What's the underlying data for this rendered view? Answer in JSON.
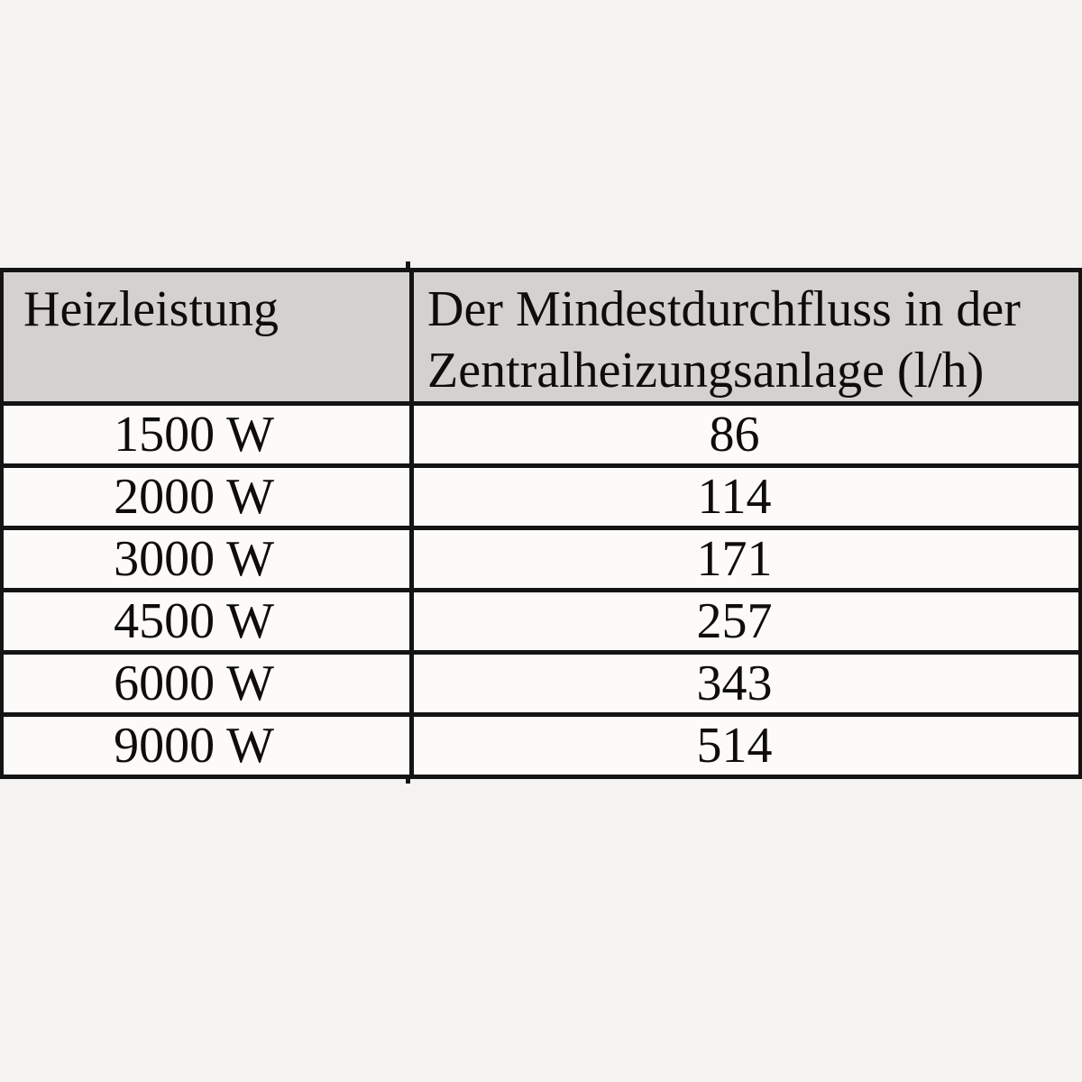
{
  "page": {
    "background": "#f4f3f1"
  },
  "table": {
    "header": {
      "power_label": "Heizleistung",
      "flow_label": "Der Mindestdurchfluss in der Zentralheizungsanlage (l/h)"
    },
    "rows": [
      {
        "power": "1500 W",
        "flow": "86"
      },
      {
        "power": "2000 W",
        "flow": "114"
      },
      {
        "power": "3000 W",
        "flow": "171"
      },
      {
        "power": "4500 W",
        "flow": "257"
      },
      {
        "power": "6000 W",
        "flow": "343"
      },
      {
        "power": "9000 W",
        "flow": "514"
      }
    ],
    "colors": {
      "header_bg": "#d4d2d0",
      "row_bg": "#fcfbf9",
      "border": "#141414",
      "text": "#0e0d0b"
    }
  }
}
